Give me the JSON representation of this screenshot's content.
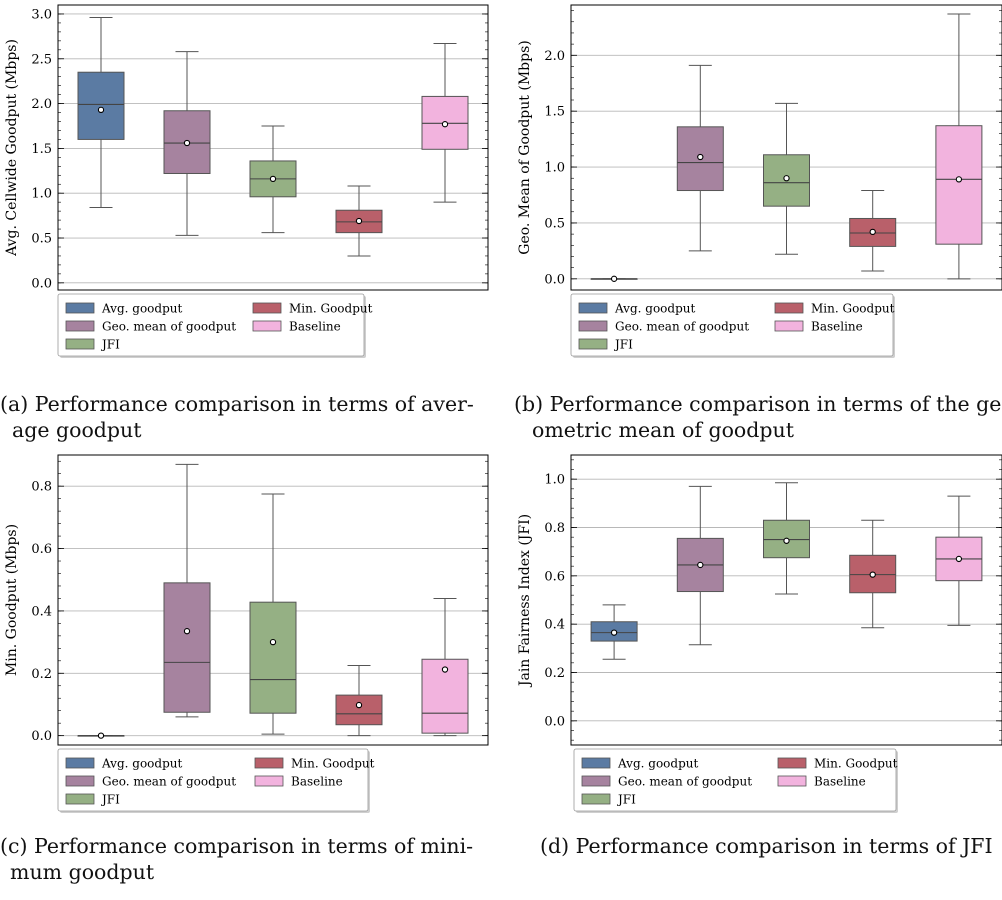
{
  "colors": {
    "avg": "#5b7ba3",
    "geo": "#a6839f",
    "jfi": "#95b084",
    "min": "#b9606a",
    "base": "#f2b3de"
  },
  "legend": {
    "entries": [
      "Avg. goodput",
      "Min. Goodput",
      "Geo. mean of goodput",
      "Baseline",
      "JFI"
    ]
  },
  "captions": {
    "a": [
      "(a) Performance comparison in terms of aver-",
      "age goodput"
    ],
    "b": [
      "(b) Performance comparison in terms of the ge",
      "ometric mean of goodput"
    ],
    "c": [
      "(c) Performance comparison in terms of mini-",
      "mum goodput"
    ],
    "d": [
      "(d) Performance comparison in terms of JFI"
    ]
  },
  "chart_data": [
    {
      "type": "box",
      "panel": "a",
      "ylabel": "Avg. Cellwide Goodput (Mbps)",
      "yticks": [
        "0.0",
        "0.5",
        "1.0",
        "1.5",
        "2.0",
        "2.5",
        "3.0"
      ],
      "ylim": [
        -0.08,
        3.1
      ],
      "grid": true,
      "series": [
        {
          "name": "Avg. goodput",
          "color": "avg",
          "whislo": 0.84,
          "q1": 1.6,
          "med": 1.99,
          "q3": 2.35,
          "whishi": 2.96,
          "mean": 1.93
        },
        {
          "name": "Geo. mean of goodput",
          "color": "geo",
          "whislo": 0.53,
          "q1": 1.22,
          "med": 1.56,
          "q3": 1.92,
          "whishi": 2.58,
          "mean": 1.56
        },
        {
          "name": "JFI",
          "color": "jfi",
          "whislo": 0.56,
          "q1": 0.96,
          "med": 1.16,
          "q3": 1.36,
          "whishi": 1.75,
          "mean": 1.16
        },
        {
          "name": "Min. Goodput",
          "color": "min",
          "whislo": 0.3,
          "q1": 0.56,
          "med": 0.68,
          "q3": 0.81,
          "whishi": 1.08,
          "mean": 0.69
        },
        {
          "name": "Baseline",
          "color": "base",
          "whislo": 0.9,
          "q1": 1.49,
          "med": 1.78,
          "q3": 2.08,
          "whishi": 2.67,
          "mean": 1.77
        }
      ]
    },
    {
      "type": "box",
      "panel": "b",
      "ylabel": "Geo. Mean of Goodput (Mbps)",
      "yticks": [
        "0.0",
        "0.5",
        "1.0",
        "1.5",
        "2.0"
      ],
      "ylim": [
        -0.1,
        2.45
      ],
      "grid": true,
      "series": [
        {
          "name": "Avg. goodput",
          "color": "avg",
          "whislo": 0.0,
          "q1": 0.0,
          "med": 0.0,
          "q3": 0.0,
          "whishi": 0.0,
          "mean": 0.0
        },
        {
          "name": "Geo. mean of goodput",
          "color": "geo",
          "whislo": 0.25,
          "q1": 0.79,
          "med": 1.04,
          "q3": 1.36,
          "whishi": 1.91,
          "mean": 1.09
        },
        {
          "name": "JFI",
          "color": "jfi",
          "whislo": 0.22,
          "q1": 0.65,
          "med": 0.86,
          "q3": 1.11,
          "whishi": 1.57,
          "mean": 0.9
        },
        {
          "name": "Min. Goodput",
          "color": "min",
          "whislo": 0.07,
          "q1": 0.29,
          "med": 0.41,
          "q3": 0.54,
          "whishi": 0.79,
          "mean": 0.42
        },
        {
          "name": "Baseline",
          "color": "base",
          "whislo": 0.0,
          "q1": 0.31,
          "med": 0.89,
          "q3": 1.37,
          "whishi": 2.37,
          "mean": 0.89
        }
      ]
    },
    {
      "type": "box",
      "panel": "c",
      "ylabel": "Min. Goodput (Mbps)",
      "yticks": [
        "0.0",
        "0.2",
        "0.4",
        "0.6",
        "0.8"
      ],
      "ylim": [
        -0.03,
        0.9
      ],
      "grid": true,
      "series": [
        {
          "name": "Avg. goodput",
          "color": "avg",
          "whislo": 0.0,
          "q1": 0.0,
          "med": 0.0,
          "q3": 0.0,
          "whishi": 0.0,
          "mean": 0.0
        },
        {
          "name": "Geo. mean of goodput",
          "color": "geo",
          "whislo": 0.06,
          "q1": 0.075,
          "med": 0.235,
          "q3": 0.49,
          "whishi": 0.87,
          "mean": 0.335
        },
        {
          "name": "JFI",
          "color": "jfi",
          "whislo": 0.005,
          "q1": 0.072,
          "med": 0.18,
          "q3": 0.428,
          "whishi": 0.775,
          "mean": 0.3
        },
        {
          "name": "Min. Goodput",
          "color": "min",
          "whislo": 0.0,
          "q1": 0.035,
          "med": 0.07,
          "q3": 0.13,
          "whishi": 0.225,
          "mean": 0.098
        },
        {
          "name": "Baseline",
          "color": "base",
          "whislo": 0.0,
          "q1": 0.008,
          "med": 0.072,
          "q3": 0.245,
          "whishi": 0.44,
          "mean": 0.212
        }
      ]
    },
    {
      "type": "box",
      "panel": "d",
      "ylabel": "Jain Fairness Index (JFI)",
      "yticks": [
        "0.0",
        "0.2",
        "0.4",
        "0.6",
        "0.8",
        "1.0"
      ],
      "ylim": [
        -0.1,
        1.1
      ],
      "grid": true,
      "series": [
        {
          "name": "Avg. goodput",
          "color": "avg",
          "whislo": 0.255,
          "q1": 0.33,
          "med": 0.365,
          "q3": 0.41,
          "whishi": 0.48,
          "mean": 0.365
        },
        {
          "name": "Geo. mean of goodput",
          "color": "geo",
          "whislo": 0.315,
          "q1": 0.535,
          "med": 0.645,
          "q3": 0.755,
          "whishi": 0.97,
          "mean": 0.645
        },
        {
          "name": "JFI",
          "color": "jfi",
          "whislo": 0.525,
          "q1": 0.675,
          "med": 0.75,
          "q3": 0.83,
          "whishi": 0.985,
          "mean": 0.745
        },
        {
          "name": "Min. Goodput",
          "color": "min",
          "whislo": 0.385,
          "q1": 0.53,
          "med": 0.605,
          "q3": 0.685,
          "whishi": 0.83,
          "mean": 0.605
        },
        {
          "name": "Baseline",
          "color": "base",
          "whislo": 0.395,
          "q1": 0.58,
          "med": 0.67,
          "q3": 0.76,
          "whishi": 0.93,
          "mean": 0.67
        }
      ]
    }
  ]
}
